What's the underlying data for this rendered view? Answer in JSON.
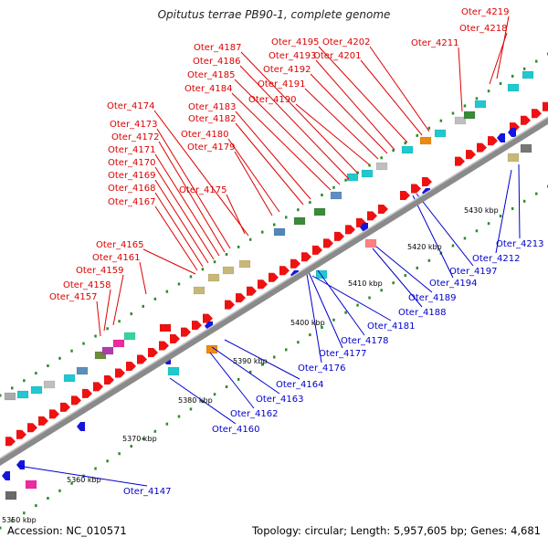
{
  "title": "Opitutus terrae PB90-1, complete genome",
  "footer": {
    "accession": "Accession: NC_010571",
    "summary": "Topology: circular; Length: 5,957,605 bp; Genes: 4,681"
  },
  "colors": {
    "backbone": "#7f7f7f",
    "forward_label": "#dd0000",
    "reverse_label": "#0000cc",
    "tick": "#2e8b2e"
  },
  "scale_labels": [
    "5350 kbp",
    "5360 kbp",
    "5370 kbp",
    "5380 kbp",
    "5390 kbp",
    "5400 kbp",
    "5410 kbp",
    "5420 kbp",
    "5430 kbp"
  ],
  "forward_genes": [
    "Oter_4157",
    "Oter_4158",
    "Oter_4159",
    "Oter_4161",
    "Oter_4165",
    "Oter_4167",
    "Oter_4168",
    "Oter_4169",
    "Oter_4170",
    "Oter_4171",
    "Oter_4172",
    "Oter_4173",
    "Oter_4174",
    "Oter_4175",
    "Oter_4179",
    "Oter_4180",
    "Oter_4182",
    "Oter_4183",
    "Oter_4184",
    "Oter_4185",
    "Oter_4186",
    "Oter_4187",
    "Oter_4190",
    "Oter_4191",
    "Oter_4192",
    "Oter_4193",
    "Oter_4195",
    "Oter_4201",
    "Oter_4202",
    "Oter_4211",
    "Oter_4218",
    "Oter_4219"
  ],
  "reverse_genes": [
    "Oter_4147",
    "Oter_4160",
    "Oter_4162",
    "Oter_4163",
    "Oter_4164",
    "Oter_4176",
    "Oter_4177",
    "Oter_4178",
    "Oter_4181",
    "Oter_4188",
    "Oter_4189",
    "Oter_4194",
    "Oter_4197",
    "Oter_4212",
    "Oter_4213"
  ]
}
